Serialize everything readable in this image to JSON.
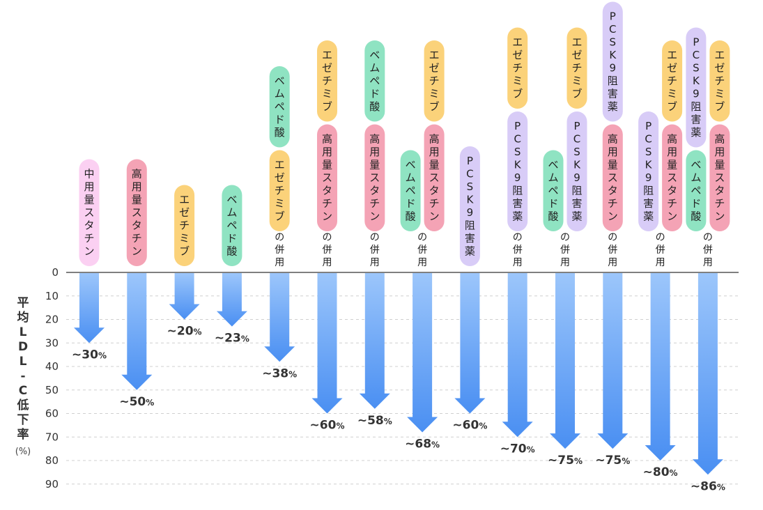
{
  "chart_data": {
    "type": "bar",
    "orientation": "downward-arrows",
    "ylabel": "平均LDL-C低下率",
    "yunit": "(%)",
    "ylim": [
      0,
      90
    ],
    "yticks": [
      0,
      10,
      20,
      30,
      40,
      50,
      60,
      70,
      80,
      90
    ],
    "grid": true,
    "suffix_label": "の併用",
    "colors": {
      "中用量スタチン": "#fbd0f2",
      "高用量スタチン": "#f4a3b5",
      "エゼチミブ": "#fbd27a",
      "ベムペド酸": "#8fe3c2",
      "PCSK9阻害薬": "#d8ccf7"
    },
    "arrow_color_top": "#9cc6fb",
    "arrow_color_bottom": "#4a8ff2",
    "categories": [
      {
        "drugs": [
          [
            "中用量スタチン"
          ]
        ],
        "combo": false,
        "value": 30,
        "value_label": "~30",
        "unit": "%"
      },
      {
        "drugs": [
          [
            "高用量スタチン"
          ]
        ],
        "combo": false,
        "value": 50,
        "value_label": "~50",
        "unit": "%"
      },
      {
        "drugs": [
          [
            "エゼチミブ"
          ]
        ],
        "combo": false,
        "value": 20,
        "value_label": "~20",
        "unit": "%"
      },
      {
        "drugs": [
          [
            "ベムペド酸"
          ]
        ],
        "combo": false,
        "value": 23,
        "value_label": "~23",
        "unit": "%"
      },
      {
        "drugs": [
          [
            "ベムペド酸",
            "エゼチミブ"
          ]
        ],
        "combo": true,
        "value": 38,
        "value_label": "~38",
        "unit": "%"
      },
      {
        "drugs": [
          [
            "エゼチミブ",
            "高用量スタチン"
          ]
        ],
        "combo": true,
        "value": 60,
        "value_label": "~60",
        "unit": "%"
      },
      {
        "drugs": [
          [
            "ベムペド酸",
            "高用量スタチン"
          ]
        ],
        "combo": true,
        "value": 58,
        "value_label": "~58",
        "unit": "%"
      },
      {
        "drugs": [
          [
            "ベムペド酸"
          ],
          [
            "エゼチミブ",
            "高用量スタチン"
          ]
        ],
        "combo": true,
        "value": 68,
        "value_label": "~68",
        "unit": "%"
      },
      {
        "drugs": [
          [
            "PCSK9阻害薬"
          ]
        ],
        "combo": false,
        "value": 60,
        "value_label": "~60",
        "unit": "%"
      },
      {
        "drugs": [
          [
            "エゼチミブ",
            "PCSK9阻害薬"
          ]
        ],
        "combo": true,
        "value": 70,
        "value_label": "~70",
        "unit": "%"
      },
      {
        "drugs": [
          [
            "ベムペド酸"
          ],
          [
            "エゼチミブ",
            "PCSK9阻害薬"
          ]
        ],
        "combo": true,
        "value": 75,
        "value_label": "~75",
        "unit": "%"
      },
      {
        "drugs": [
          [
            "PCSK9阻害薬",
            "高用量スタチン"
          ]
        ],
        "combo": true,
        "value": 75,
        "value_label": "~75",
        "unit": "%"
      },
      {
        "drugs": [
          [
            "PCSK9阻害薬"
          ],
          [
            "エゼチミブ",
            "高用量スタチン"
          ]
        ],
        "combo": true,
        "value": 80,
        "value_label": "~80",
        "unit": "%"
      },
      {
        "drugs": [
          [
            "PCSK9阻害薬",
            "ベムペド酸"
          ],
          [
            "エゼチミブ",
            "高用量スタチン"
          ]
        ],
        "combo": true,
        "value": 86,
        "value_label": "~86",
        "unit": "%"
      }
    ]
  }
}
